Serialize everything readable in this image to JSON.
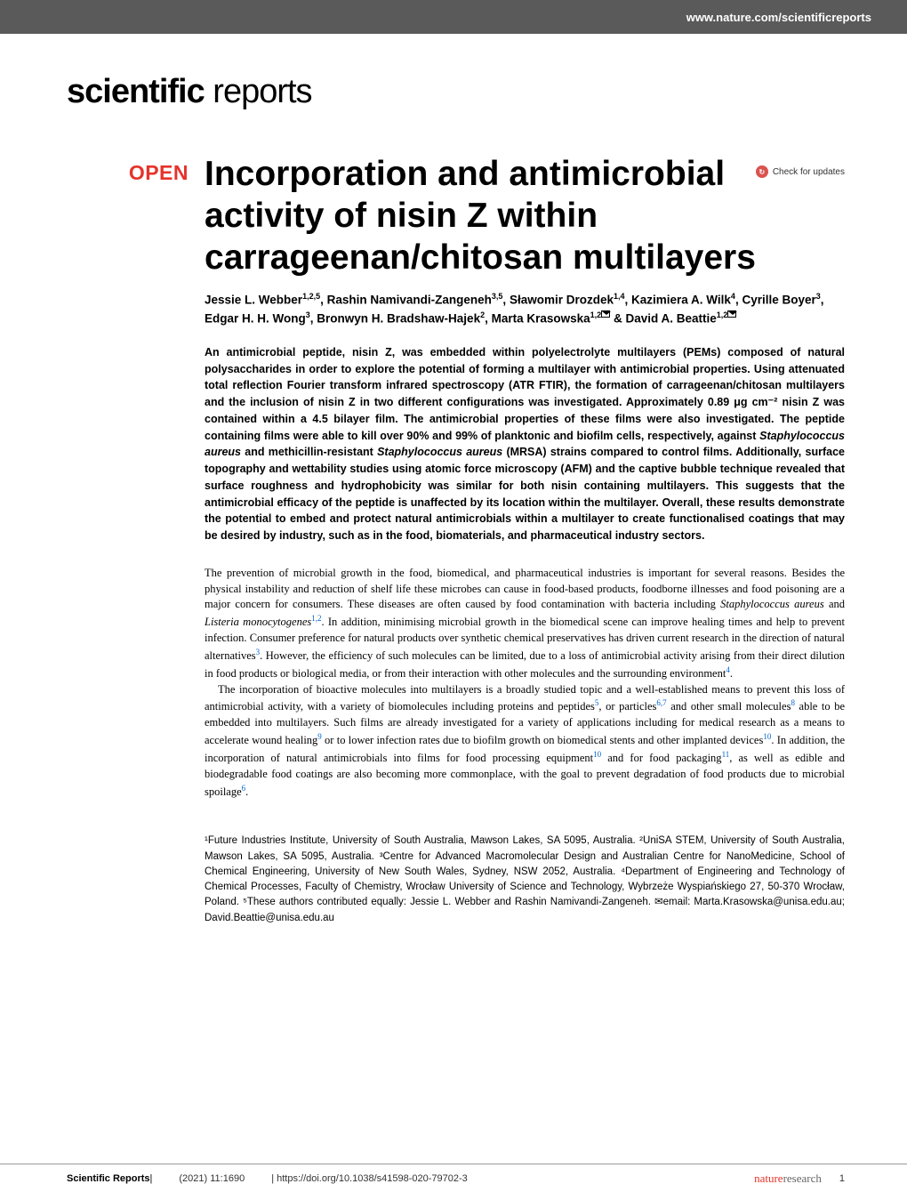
{
  "header": {
    "url": "www.nature.com/scientificreports"
  },
  "journal": {
    "logo_bold": "scientific",
    "logo_light": " reports"
  },
  "updates": {
    "label": "Check for updates"
  },
  "badge": {
    "open": "OPEN"
  },
  "title": "Incorporation and antimicrobial activity of nisin Z within carrageenan/chitosan multilayers",
  "authors": {
    "a1": "Jessie L. Webber",
    "a1_aff": "1,2,5",
    "a2": "Rashin Namivandi-Zangeneh",
    "a2_aff": "3,5",
    "a3": "Sławomir Drozdek",
    "a3_aff": "1,4",
    "a4": "Kazimiera A. Wilk",
    "a4_aff": "4",
    "a5": "Cyrille Boyer",
    "a5_aff": "3",
    "a6": "Edgar H. H. Wong",
    "a6_aff": "3",
    "a7": "Bronwyn H. Bradshaw-Hajek",
    "a7_aff": "2",
    "a8": "Marta Krasowska",
    "a8_aff": "1,2",
    "a9": "David A. Beattie",
    "a9_aff": "1,2"
  },
  "abstract": {
    "text": "An antimicrobial peptide, nisin Z, was embedded within polyelectrolyte multilayers (PEMs) composed of natural polysaccharides in order to explore the potential of forming a multilayer with antimicrobial properties. Using attenuated total reflection Fourier transform infrared spectroscopy (ATR FTIR), the formation of carrageenan/chitosan multilayers and the inclusion of nisin Z in two different configurations was investigated. Approximately 0.89 μg cm⁻² nisin Z was contained within a 4.5 bilayer film. The antimicrobial properties of these films were also investigated. The peptide containing films were able to kill over 90% and 99% of planktonic and biofilm cells, respectively, against ",
    "species1": "Staphylococcus aureus",
    "mid": " and methicillin-resistant ",
    "species2": "Staphylococcus aureus",
    "text2": " (MRSA) strains compared to control films. Additionally, surface topography and wettability studies using atomic force microscopy (AFM) and the captive bubble technique revealed that surface roughness and hydrophobicity was similar for both nisin containing multilayers. This suggests that the antimicrobial efficacy of the peptide is unaffected by its location within the multilayer. Overall, these results demonstrate the potential to embed and protect natural antimicrobials within a multilayer to create functionalised coatings that may be desired by industry, such as in the food, biomaterials, and pharmaceutical industry sectors."
  },
  "body": {
    "p1a": "The prevention of microbial growth in the food, biomedical, and pharmaceutical industries is important for several reasons. Besides the physical instability and reduction of shelf life these microbes can cause in food-based products, foodborne illnesses and food poisoning are a major concern for consumers. These diseases are often caused by food contamination with bacteria including ",
    "p1_sp1": "Staphylococcus aureus",
    "p1b": " and ",
    "p1_sp2": "Listeria monocytogenes",
    "p1_r12": "1,2",
    "p1c": ". In addition, minimising microbial growth in the biomedical scene can improve healing times and help to prevent infection. Consumer preference for natural products over synthetic chemical preservatives has driven current research in the direction of natural alternatives",
    "p1_r3": "3",
    "p1d": ". However, the efficiency of such molecules can be limited, due to a loss of antimicrobial activity arising from their direct dilution in food products or biological media, or from their interaction with other molecules and the surrounding environment",
    "p1_r4": "4",
    "p1e": ".",
    "p2a": "The incorporation of bioactive molecules into multilayers is a broadly studied topic and a well-established means to prevent this loss of antimicrobial activity, with a variety of biomolecules including proteins and peptides",
    "p2_r5": "5",
    "p2b": ", or particles",
    "p2_r67": "6,7",
    "p2c": " and other small molecules",
    "p2_r8": "8",
    "p2d": " able to be embedded into multilayers. Such films are already investigated for a variety of applications including for medical research as a means to accelerate wound healing",
    "p2_r9": "9",
    "p2e": " or to lower infection rates due to biofilm growth on biomedical stents and other implanted devices",
    "p2_r10": "10",
    "p2f": ". In addition, the incorporation of natural antimicrobials into films for food processing equipment",
    "p2_r10b": "10",
    "p2g": " and for food packaging",
    "p2_r11": "11",
    "p2h": ", as well as edible and biodegradable food coatings are also becoming more commonplace, with the goal to prevent degradation of food products due to microbial spoilage",
    "p2_r6b": "6",
    "p2i": "."
  },
  "affiliations": {
    "text": "¹Future Industries Institute, University of South Australia, Mawson Lakes, SA 5095, Australia. ²UniSA STEM, University of South Australia, Mawson Lakes, SA 5095, Australia. ³Centre for Advanced Macromolecular Design and Australian Centre for NanoMedicine, School of Chemical Engineering, University of New South Wales, Sydney, NSW 2052, Australia. ⁴Department of Engineering and Technology of Chemical Processes, Faculty of Chemistry, Wrocław University of Science and Technology, Wybrzeże Wyspiańskiego 27, 50-370 Wrocław, Poland. ⁵These authors contributed equally: Jessie L. Webber and Rashin Namivandi-Zangeneh. ✉email: Marta.Krasowska@unisa.edu.au; David.Beattie@unisa.edu.au"
  },
  "footer": {
    "journal": "Scientific Reports",
    "info": "(2021) 11:1690",
    "doi": "| https://doi.org/10.1038/s41598-020-79702-3",
    "publisher_nature": "nature",
    "publisher_research": "research",
    "page": "1"
  },
  "colors": {
    "header_bg": "#5a5a5a",
    "open_red": "#e6332a",
    "link_blue": "#0066cc",
    "divider": "#999999"
  }
}
